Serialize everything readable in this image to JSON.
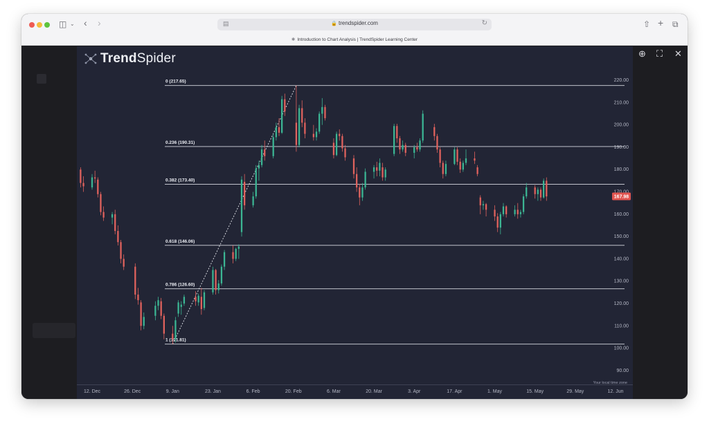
{
  "browser": {
    "url": "trendspider.com",
    "tab_title": "Introduction to Chart Analysis | TrendSpider Learning Center",
    "icons": [
      "sidebar-icon",
      "chevron-down-icon",
      "back-icon",
      "forward-icon",
      "lock-icon",
      "reader-icon",
      "reload-icon",
      "share-icon",
      "new-tab-icon",
      "tabs-overview-icon"
    ]
  },
  "modal": {
    "controls": [
      "zoom-in-icon",
      "fullscreen-icon",
      "close-icon"
    ]
  },
  "logo": {
    "text_bold": "Trend",
    "text_regular": "Spider"
  },
  "chart_data": {
    "type": "candlestick",
    "timezone_label": "Your local time zone",
    "price_label": "167.98",
    "y_ticks": [
      "220.00",
      "210.00",
      "200.00",
      "190.00",
      "180.00",
      "170.00",
      "160.00",
      "150.00",
      "140.00",
      "130.00",
      "120.00",
      "110.00",
      "100.00",
      "90.00"
    ],
    "ylim": [
      85,
      229
    ],
    "x_ticks": [
      {
        "label": "12. Dec",
        "date": "2022-12-12"
      },
      {
        "label": "26. Dec",
        "date": "2022-12-26"
      },
      {
        "label": "9. Jan",
        "date": "2023-01-09"
      },
      {
        "label": "23. Jan",
        "date": "2023-01-23"
      },
      {
        "label": "6. Feb",
        "date": "2023-02-06"
      },
      {
        "label": "20. Feb",
        "date": "2023-02-20"
      },
      {
        "label": "6. Mar",
        "date": "2023-03-06"
      },
      {
        "label": "20. Mar",
        "date": "2023-03-20"
      },
      {
        "label": "3. Apr",
        "date": "2023-04-03"
      },
      {
        "label": "17. Apr",
        "date": "2023-04-17"
      },
      {
        "label": "1. May",
        "date": "2023-05-01"
      },
      {
        "label": "15. May",
        "date": "2023-05-15"
      },
      {
        "label": "29. May",
        "date": "2023-05-29"
      },
      {
        "label": "12. Jun",
        "date": "2023-06-12"
      }
    ],
    "fib_levels": [
      {
        "label": "0 (217.65)",
        "price": 217.65
      },
      {
        "label": "0.236 (190.31)",
        "price": 190.31
      },
      {
        "label": "0.382 (173.40)",
        "price": 173.4
      },
      {
        "label": "0.618 (146.06)",
        "price": 146.06
      },
      {
        "label": "0.786 (126.60)",
        "price": 126.6
      },
      {
        "label": "1 (101.81)",
        "price": 101.81
      }
    ],
    "fib_trendline": {
      "from": {
        "date": "2023-01-09",
        "price": 101.81
      },
      "to": {
        "date": "2023-02-21",
        "price": 217.65
      }
    },
    "candles": [
      {
        "date": "2022-12-08",
        "open": 180.0,
        "high": 181.0,
        "low": 172.0,
        "close": 174.0
      },
      {
        "date": "2022-12-09",
        "open": 174.0,
        "high": 177.0,
        "low": 170.0,
        "close": 172.5
      },
      {
        "date": "2022-12-12",
        "open": 172.0,
        "high": 178.0,
        "low": 171.0,
        "close": 176.5
      },
      {
        "date": "2022-12-13",
        "open": 176.5,
        "high": 179.5,
        "low": 174.0,
        "close": 176.0
      },
      {
        "date": "2022-12-14",
        "open": 175.5,
        "high": 176.5,
        "low": 167.5,
        "close": 169.0
      },
      {
        "date": "2022-12-15",
        "open": 169.0,
        "high": 170.0,
        "low": 159.5,
        "close": 161.0
      },
      {
        "date": "2022-12-16",
        "open": 161.0,
        "high": 163.5,
        "low": 157.0,
        "close": 158.5
      },
      {
        "date": "2022-12-19",
        "open": 158.5,
        "high": 161.0,
        "low": 155.5,
        "close": 160.0
      },
      {
        "date": "2022-12-20",
        "open": 160.0,
        "high": 162.0,
        "low": 151.0,
        "close": 152.5
      },
      {
        "date": "2022-12-21",
        "open": 152.5,
        "high": 155.0,
        "low": 146.0,
        "close": 147.5
      },
      {
        "date": "2022-12-22",
        "open": 147.5,
        "high": 148.5,
        "low": 138.0,
        "close": 140.0
      },
      {
        "date": "2022-12-23",
        "open": 140.0,
        "high": 142.0,
        "low": 135.0,
        "close": 136.5
      },
      {
        "date": "2022-12-27",
        "open": 136.5,
        "high": 138.0,
        "low": 122.0,
        "close": 124.0
      },
      {
        "date": "2022-12-28",
        "open": 124.0,
        "high": 127.0,
        "low": 119.5,
        "close": 121.5
      },
      {
        "date": "2022-12-29",
        "open": 120.5,
        "high": 121.5,
        "low": 108.0,
        "close": 110.0
      },
      {
        "date": "2022-12-30",
        "open": 110.0,
        "high": 116.0,
        "low": 108.5,
        "close": 114.0
      },
      {
        "date": "2023-01-03",
        "open": 114.5,
        "high": 121.0,
        "low": 112.5,
        "close": 119.0
      },
      {
        "date": "2023-01-04",
        "open": 119.0,
        "high": 123.0,
        "low": 117.0,
        "close": 121.5
      },
      {
        "date": "2023-01-05",
        "open": 121.0,
        "high": 122.5,
        "low": 113.0,
        "close": 114.5
      },
      {
        "date": "2023-01-06",
        "open": 114.5,
        "high": 115.5,
        "low": 104.0,
        "close": 106.5
      },
      {
        "date": "2023-01-09",
        "open": 106.5,
        "high": 110.0,
        "low": 101.81,
        "close": 104.0
      },
      {
        "date": "2023-01-10",
        "open": 104.0,
        "high": 114.0,
        "low": 102.5,
        "close": 112.5
      },
      {
        "date": "2023-01-11",
        "open": 115.5,
        "high": 121.5,
        "low": 114.0,
        "close": 120.5
      },
      {
        "date": "2023-01-12",
        "open": 118.5,
        "high": 121.0,
        "low": 115.0,
        "close": 119.5
      },
      {
        "date": "2023-01-13",
        "open": 120.0,
        "high": 124.0,
        "low": 119.0,
        "close": 123.0
      },
      {
        "date": "2023-01-17",
        "open": 123.0,
        "high": 125.5,
        "low": 119.0,
        "close": 121.0
      },
      {
        "date": "2023-01-18",
        "open": 120.5,
        "high": 124.5,
        "low": 119.0,
        "close": 123.5
      },
      {
        "date": "2023-01-19",
        "open": 123.0,
        "high": 127.0,
        "low": 115.0,
        "close": 117.5
      },
      {
        "date": "2023-01-20",
        "open": 118.0,
        "high": 126.0,
        "low": 117.0,
        "close": 125.0
      },
      {
        "date": "2023-01-23",
        "open": 125.0,
        "high": 136.5,
        "low": 124.0,
        "close": 135.0
      },
      {
        "date": "2023-01-24",
        "open": 135.0,
        "high": 135.5,
        "low": 124.0,
        "close": 126.0
      },
      {
        "date": "2023-01-25",
        "open": 126.0,
        "high": 130.5,
        "low": 124.5,
        "close": 129.0
      },
      {
        "date": "2023-01-26",
        "open": 129.0,
        "high": 137.5,
        "low": 128.0,
        "close": 136.5
      },
      {
        "date": "2023-01-27",
        "open": 136.5,
        "high": 144.0,
        "low": 135.0,
        "close": 143.0
      },
      {
        "date": "2023-01-30",
        "open": 143.0,
        "high": 146.0,
        "low": 138.0,
        "close": 140.0
      },
      {
        "date": "2023-01-31",
        "open": 140.0,
        "high": 145.0,
        "low": 139.0,
        "close": 144.5
      },
      {
        "date": "2023-02-01",
        "open": 144.5,
        "high": 146.5,
        "low": 140.0,
        "close": 145.5
      },
      {
        "date": "2023-02-02",
        "open": 152.0,
        "high": 177.0,
        "low": 150.0,
        "close": 175.5
      },
      {
        "date": "2023-02-03",
        "open": 174.5,
        "high": 178.0,
        "low": 162.0,
        "close": 164.0
      },
      {
        "date": "2023-02-06",
        "open": 164.0,
        "high": 170.0,
        "low": 163.0,
        "close": 168.0
      },
      {
        "date": "2023-02-07",
        "open": 168.0,
        "high": 182.0,
        "low": 167.0,
        "close": 180.5
      },
      {
        "date": "2023-02-08",
        "open": 180.5,
        "high": 184.0,
        "low": 175.0,
        "close": 182.0
      },
      {
        "date": "2023-02-09",
        "open": 182.0,
        "high": 191.0,
        "low": 181.0,
        "close": 189.0
      },
      {
        "date": "2023-02-10",
        "open": 189.0,
        "high": 193.0,
        "low": 184.0,
        "close": 186.0
      },
      {
        "date": "2023-02-13",
        "open": 186.0,
        "high": 196.0,
        "low": 185.0,
        "close": 194.5
      },
      {
        "date": "2023-02-14",
        "open": 194.5,
        "high": 201.0,
        "low": 193.0,
        "close": 199.0
      },
      {
        "date": "2023-02-15",
        "open": 199.0,
        "high": 203.0,
        "low": 195.0,
        "close": 196.5
      },
      {
        "date": "2023-02-16",
        "open": 196.5,
        "high": 213.0,
        "low": 196.0,
        "close": 211.5
      },
      {
        "date": "2023-02-17",
        "open": 211.5,
        "high": 214.0,
        "low": 204.0,
        "close": 206.0
      },
      {
        "date": "2023-02-21",
        "open": 201.0,
        "high": 217.65,
        "low": 188.0,
        "close": 191.0
      },
      {
        "date": "2023-02-22",
        "open": 191.0,
        "high": 209.0,
        "low": 190.0,
        "close": 207.5
      },
      {
        "date": "2023-02-23",
        "open": 207.5,
        "high": 211.0,
        "low": 199.0,
        "close": 201.0
      },
      {
        "date": "2023-02-24",
        "open": 201.0,
        "high": 203.0,
        "low": 194.0,
        "close": 196.0
      },
      {
        "date": "2023-02-27",
        "open": 196.0,
        "high": 200.0,
        "low": 193.0,
        "close": 194.5
      },
      {
        "date": "2023-02-28",
        "open": 194.5,
        "high": 198.5,
        "low": 193.0,
        "close": 197.0
      },
      {
        "date": "2023-03-01",
        "open": 197.0,
        "high": 206.0,
        "low": 196.0,
        "close": 205.0
      },
      {
        "date": "2023-03-02",
        "open": 205.0,
        "high": 212.0,
        "low": 200.0,
        "close": 208.0
      },
      {
        "date": "2023-03-03",
        "open": 208.0,
        "high": 209.0,
        "low": 202.0,
        "close": 203.0
      },
      {
        "date": "2023-03-06",
        "open": 192.0,
        "high": 194.0,
        "low": 185.0,
        "close": 186.5
      },
      {
        "date": "2023-03-07",
        "open": 186.5,
        "high": 197.0,
        "low": 186.0,
        "close": 196.0
      },
      {
        "date": "2023-03-08",
        "open": 196.0,
        "high": 198.0,
        "low": 193.0,
        "close": 195.0
      },
      {
        "date": "2023-03-09",
        "open": 195.0,
        "high": 196.0,
        "low": 188.0,
        "close": 189.5
      },
      {
        "date": "2023-03-10",
        "open": 189.5,
        "high": 191.0,
        "low": 184.0,
        "close": 185.5
      },
      {
        "date": "2023-03-13",
        "open": 185.0,
        "high": 186.5,
        "low": 176.0,
        "close": 178.0
      },
      {
        "date": "2023-03-14",
        "open": 178.0,
        "high": 181.0,
        "low": 170.0,
        "close": 172.0
      },
      {
        "date": "2023-03-15",
        "open": 172.0,
        "high": 173.5,
        "low": 164.0,
        "close": 167.5
      },
      {
        "date": "2023-03-16",
        "open": 167.5,
        "high": 174.0,
        "low": 166.0,
        "close": 172.0
      },
      {
        "date": "2023-03-17",
        "open": 172.0,
        "high": 180.5,
        "low": 171.0,
        "close": 179.0
      },
      {
        "date": "2023-03-20",
        "open": 179.0,
        "high": 182.0,
        "low": 176.0,
        "close": 181.0
      },
      {
        "date": "2023-03-21",
        "open": 181.0,
        "high": 183.5,
        "low": 177.0,
        "close": 179.5
      },
      {
        "date": "2023-03-22",
        "open": 179.5,
        "high": 185.0,
        "low": 177.0,
        "close": 183.0
      },
      {
        "date": "2023-03-23",
        "open": 181.0,
        "high": 183.0,
        "low": 175.0,
        "close": 176.5
      },
      {
        "date": "2023-03-24",
        "open": 176.5,
        "high": 181.0,
        "low": 175.0,
        "close": 180.0
      },
      {
        "date": "2023-03-27",
        "open": 187.0,
        "high": 200.5,
        "low": 186.0,
        "close": 199.5
      },
      {
        "date": "2023-03-28",
        "open": 199.5,
        "high": 200.5,
        "low": 192.0,
        "close": 194.0
      },
      {
        "date": "2023-03-29",
        "open": 194.0,
        "high": 195.0,
        "low": 187.0,
        "close": 189.0
      },
      {
        "date": "2023-03-30",
        "open": 189.0,
        "high": 193.0,
        "low": 188.0,
        "close": 191.0
      },
      {
        "date": "2023-03-31",
        "open": 191.0,
        "high": 192.0,
        "low": 186.0,
        "close": 187.5
      },
      {
        "date": "2023-04-03",
        "open": 187.5,
        "high": 191.0,
        "low": 185.0,
        "close": 190.0
      },
      {
        "date": "2023-04-04",
        "open": 190.0,
        "high": 192.0,
        "low": 188.0,
        "close": 189.0
      },
      {
        "date": "2023-04-05",
        "open": 189.0,
        "high": 194.0,
        "low": 188.0,
        "close": 193.0
      },
      {
        "date": "2023-04-06",
        "open": 193.0,
        "high": 206.5,
        "low": 192.0,
        "close": 205.0
      },
      {
        "date": "2023-04-10",
        "open": 199.0,
        "high": 200.5,
        "low": 193.0,
        "close": 195.0
      },
      {
        "date": "2023-04-11",
        "open": 195.0,
        "high": 196.0,
        "low": 187.5,
        "close": 189.0
      },
      {
        "date": "2023-04-12",
        "open": 189.0,
        "high": 190.0,
        "low": 181.0,
        "close": 183.0
      },
      {
        "date": "2023-04-13",
        "open": 183.0,
        "high": 184.0,
        "low": 176.0,
        "close": 178.0
      },
      {
        "date": "2023-04-14",
        "open": 178.0,
        "high": 184.0,
        "low": 177.0,
        "close": 182.5
      },
      {
        "date": "2023-04-17",
        "open": 182.5,
        "high": 190.0,
        "low": 182.0,
        "close": 189.0
      },
      {
        "date": "2023-04-18",
        "open": 189.0,
        "high": 190.0,
        "low": 182.0,
        "close": 183.5
      },
      {
        "date": "2023-04-19",
        "open": 183.5,
        "high": 185.0,
        "low": 178.5,
        "close": 180.0
      },
      {
        "date": "2023-04-20",
        "open": 180.0,
        "high": 184.0,
        "low": 179.0,
        "close": 183.0
      },
      {
        "date": "2023-04-21",
        "open": 183.0,
        "high": 189.0,
        "low": 182.0,
        "close": 185.0
      },
      {
        "date": "2023-04-24",
        "open": 185.0,
        "high": 188.0,
        "low": 182.5,
        "close": 184.0
      },
      {
        "date": "2023-04-25",
        "open": 181.0,
        "high": 182.0,
        "low": 177.0,
        "close": 178.0
      },
      {
        "date": "2023-04-26",
        "open": 167.5,
        "high": 168.5,
        "low": 160.0,
        "close": 164.0
      },
      {
        "date": "2023-04-27",
        "open": 164.0,
        "high": 166.0,
        "low": 162.0,
        "close": 164.5
      },
      {
        "date": "2023-04-28",
        "open": 164.5,
        "high": 165.0,
        "low": 159.0,
        "close": 162.0
      },
      {
        "date": "2023-05-01",
        "open": 162.0,
        "high": 164.0,
        "low": 157.0,
        "close": 159.0
      },
      {
        "date": "2023-05-02",
        "open": 159.0,
        "high": 160.5,
        "low": 152.0,
        "close": 154.0
      },
      {
        "date": "2023-05-03",
        "open": 154.0,
        "high": 161.0,
        "low": 151.0,
        "close": 160.0
      },
      {
        "date": "2023-05-04",
        "open": 160.0,
        "high": 165.0,
        "low": 159.0,
        "close": 163.5
      },
      {
        "date": "2023-05-05",
        "open": 163.5,
        "high": 164.0,
        "low": 158.5,
        "close": 160.0
      },
      {
        "date": "2023-05-08",
        "open": 160.0,
        "high": 164.0,
        "low": 159.0,
        "close": 162.0
      },
      {
        "date": "2023-05-09",
        "open": 162.0,
        "high": 165.0,
        "low": 158.0,
        "close": 160.0
      },
      {
        "date": "2023-05-10",
        "open": 160.0,
        "high": 162.0,
        "low": 158.5,
        "close": 161.0
      },
      {
        "date": "2023-05-11",
        "open": 161.0,
        "high": 169.0,
        "low": 160.0,
        "close": 168.0
      },
      {
        "date": "2023-05-12",
        "open": 168.0,
        "high": 174.0,
        "low": 167.0,
        "close": 172.0
      },
      {
        "date": "2023-05-15",
        "open": 172.0,
        "high": 173.0,
        "low": 167.0,
        "close": 169.0
      },
      {
        "date": "2023-05-16",
        "open": 169.0,
        "high": 172.0,
        "low": 166.0,
        "close": 171.0
      },
      {
        "date": "2023-05-17",
        "open": 171.0,
        "high": 172.0,
        "low": 166.0,
        "close": 167.5
      },
      {
        "date": "2023-05-18",
        "open": 167.5,
        "high": 176.0,
        "low": 167.0,
        "close": 175.0
      },
      {
        "date": "2023-05-19",
        "open": 175.0,
        "high": 176.5,
        "low": 166.0,
        "close": 167.98
      }
    ],
    "colors": {
      "background": "#222535",
      "up": "#3bb593",
      "down": "#e0625d",
      "fib_line": "#d8dae2",
      "text": "#b5b8c5",
      "price_badge": "#e0544f"
    }
  }
}
